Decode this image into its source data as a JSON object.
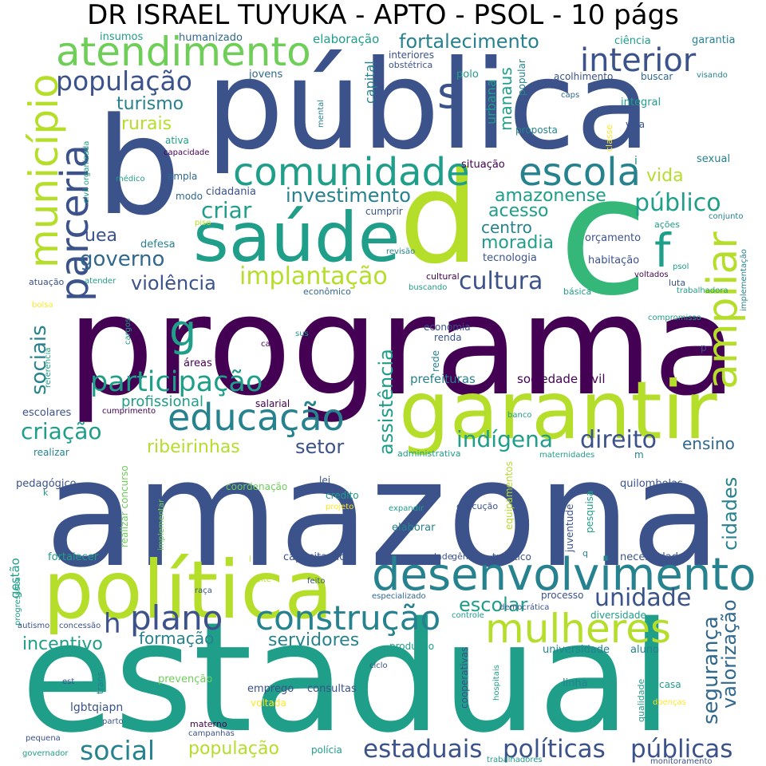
{
  "title": "DR ISRAEL TUYUKA - APTO - PSOL - 10 págs",
  "colors": {
    "dark_purple": "#440154",
    "indigo": "#3b528b",
    "blue": "#31688e",
    "teal_blue": "#26828e",
    "teal": "#1f9e89",
    "green": "#35b779",
    "light_green": "#6ece58",
    "lime": "#b5de2b",
    "yellow": "#fde725"
  },
  "words": [
    {
      "text": "programa",
      "color": "dark_purple"
    },
    {
      "text": "amazona",
      "color": "indigo"
    },
    {
      "text": "estadual",
      "color": "teal"
    },
    {
      "text": "pública",
      "color": "indigo"
    },
    {
      "text": "b",
      "color": "indigo"
    },
    {
      "text": "c",
      "color": "green"
    },
    {
      "text": "d",
      "color": "lime"
    },
    {
      "text": "garantir",
      "color": "lime"
    },
    {
      "text": "política",
      "color": "lime"
    },
    {
      "text": "saúde",
      "color": "teal"
    },
    {
      "text": "desenvolvimento",
      "color": "teal_blue"
    },
    {
      "text": "município",
      "color": "lime"
    },
    {
      "text": "atendimento",
      "color": "light_green"
    },
    {
      "text": "comunidade",
      "color": "teal"
    },
    {
      "text": "escola",
      "color": "teal_blue"
    },
    {
      "text": "parceria",
      "color": "indigo"
    },
    {
      "text": "ampliar",
      "color": "lime"
    },
    {
      "text": "mulheres",
      "color": "lime"
    },
    {
      "text": "educação",
      "color": "teal_blue"
    },
    {
      "text": "construção",
      "color": "teal_blue"
    },
    {
      "text": "plano",
      "color": "indigo"
    },
    {
      "text": "interior",
      "color": "indigo"
    },
    {
      "text": "participação",
      "color": "teal"
    },
    {
      "text": "população",
      "color": "indigo"
    },
    {
      "text": "estaduais",
      "color": "indigo"
    },
    {
      "text": "políticas",
      "color": "indigo"
    },
    {
      "text": "públicas",
      "color": "indigo"
    },
    {
      "text": "social",
      "color": "teal_blue"
    },
    {
      "text": "s",
      "color": "indigo"
    },
    {
      "text": "f",
      "color": "teal"
    },
    {
      "text": "g",
      "color": "teal"
    },
    {
      "text": "h",
      "color": "indigo"
    },
    {
      "text": "unidade",
      "color": "indigo"
    },
    {
      "text": "cultura",
      "color": "indigo"
    },
    {
      "text": "implantação",
      "color": "lime"
    },
    {
      "text": "público",
      "color": "teal"
    },
    {
      "text": "governo",
      "color": "blue"
    },
    {
      "text": "criar",
      "color": "teal"
    },
    {
      "text": "direito",
      "color": "indigo"
    },
    {
      "text": "indígena",
      "color": "teal"
    },
    {
      "text": "criação",
      "color": "teal"
    },
    {
      "text": "sociais",
      "color": "teal_blue"
    },
    {
      "text": "assistência",
      "color": "teal"
    },
    {
      "text": "segurança",
      "color": "blue"
    },
    {
      "text": "valorização",
      "color": "blue"
    },
    {
      "text": "cidades",
      "color": "teal_blue"
    },
    {
      "text": "escolar",
      "color": "teal"
    },
    {
      "text": "violência",
      "color": "indigo"
    },
    {
      "text": "investimento",
      "color": "teal_blue"
    },
    {
      "text": "amazonense",
      "color": "teal"
    },
    {
      "text": "acesso",
      "color": "teal"
    },
    {
      "text": "moradia",
      "color": "teal"
    },
    {
      "text": "centro",
      "color": "teal_blue"
    },
    {
      "text": "turismo",
      "color": "teal_blue"
    },
    {
      "text": "rurais",
      "color": "lime"
    },
    {
      "text": "fortalecimento",
      "color": "teal_blue"
    },
    {
      "text": "vida",
      "color": "lime"
    },
    {
      "text": "setor",
      "color": "indigo"
    },
    {
      "text": "ribeirinhas",
      "color": "lime"
    },
    {
      "text": "servidores",
      "color": "teal_blue"
    },
    {
      "text": "formação",
      "color": "teal_blue"
    },
    {
      "text": "incentivo",
      "color": "teal"
    },
    {
      "text": "população",
      "color": "lime"
    },
    {
      "text": "profissional",
      "color": "teal"
    },
    {
      "text": "uea",
      "color": "indigo"
    },
    {
      "text": "ensino",
      "color": "blue"
    },
    {
      "text": "manaus",
      "color": "teal"
    },
    {
      "text": "urbana",
      "color": "teal"
    },
    {
      "text": "capital",
      "color": "teal_blue"
    },
    {
      "text": "elaboração",
      "color": "teal"
    },
    {
      "text": "insumos",
      "color": "teal"
    },
    {
      "text": "humanizado",
      "color": "blue"
    },
    {
      "text": "ciência",
      "color": "teal"
    },
    {
      "text": "garantia",
      "color": "teal_blue"
    },
    {
      "text": "interiores",
      "color": "indigo"
    },
    {
      "text": "obstétrica",
      "color": "indigo"
    },
    {
      "text": "popular",
      "color": "teal_blue"
    },
    {
      "text": "jovens",
      "color": "blue"
    },
    {
      "text": "polo",
      "color": "teal"
    },
    {
      "text": "acolhimento",
      "color": "indigo"
    },
    {
      "text": "buscar",
      "color": "blue"
    },
    {
      "text": "visando",
      "color": "teal_blue"
    },
    {
      "text": "integral",
      "color": "teal"
    },
    {
      "text": "caps",
      "color": "blue"
    },
    {
      "text": "mental",
      "color": "teal_blue"
    },
    {
      "text": "proposta",
      "color": "teal_blue"
    },
    {
      "text": "classe",
      "color": "yellow"
    },
    {
      "text": "visa",
      "color": "indigo"
    },
    {
      "text": "ativa",
      "color": "teal"
    },
    {
      "text": "capacidade",
      "color": "dark_purple"
    },
    {
      "text": "sexual",
      "color": "teal_blue"
    },
    {
      "text": "i",
      "color": "teal_blue"
    },
    {
      "text": "civil organizada",
      "color": "teal"
    },
    {
      "text": "médico",
      "color": "teal"
    },
    {
      "text": "ampla",
      "color": "blue"
    },
    {
      "text": "situação",
      "color": "dark_purple"
    },
    {
      "text": "modo",
      "color": "blue"
    },
    {
      "text": "cidadania",
      "color": "indigo"
    },
    {
      "text": "cumprir",
      "color": "indigo"
    },
    {
      "text": "piso",
      "color": "lime"
    },
    {
      "text": "defesa",
      "color": "teal_blue"
    },
    {
      "text": "orçamento",
      "color": "indigo"
    },
    {
      "text": "ações",
      "color": "teal"
    },
    {
      "text": "conjunto",
      "color": "teal_blue"
    },
    {
      "text": "implementação",
      "color": "teal_blue"
    },
    {
      "text": "tecnologia",
      "color": "indigo"
    },
    {
      "text": "revisão",
      "color": "teal_blue"
    },
    {
      "text": "habitação",
      "color": "indigo"
    },
    {
      "text": "psol",
      "color": "teal"
    },
    {
      "text": "atuação",
      "color": "indigo"
    },
    {
      "text": "atender",
      "color": "teal"
    },
    {
      "text": "cultural",
      "color": "dark_purple"
    },
    {
      "text": "buscando",
      "color": "teal"
    },
    {
      "text": "voltados",
      "color": "dark_purple"
    },
    {
      "text": "luta",
      "color": "indigo"
    },
    {
      "text": "trabalhadora",
      "color": "teal"
    },
    {
      "text": "econômico",
      "color": "blue"
    },
    {
      "text": "básica",
      "color": "teal"
    },
    {
      "text": "bolsa",
      "color": "yellow"
    },
    {
      "text": "compromisso",
      "color": "teal"
    },
    {
      "text": "referência",
      "color": "teal"
    },
    {
      "text": "cargos",
      "color": "teal"
    },
    {
      "text": "economia",
      "color": "indigo"
    },
    {
      "text": "renda",
      "color": "indigo"
    },
    {
      "text": "ca",
      "color": "dark_purple"
    },
    {
      "text": "sus",
      "color": "teal"
    },
    {
      "text": "p",
      "color": "indigo"
    },
    {
      "text": "rede",
      "color": "teal_blue"
    },
    {
      "text": "áreas",
      "color": "dark_purple"
    },
    {
      "text": "prefeituras",
      "color": "teal_blue"
    },
    {
      "text": "sociedade civil",
      "color": "dark_purple"
    },
    {
      "text": "salarial",
      "color": "dark_purple"
    },
    {
      "text": "escolares",
      "color": "indigo"
    },
    {
      "text": "cumprimento",
      "color": "dark_purple"
    },
    {
      "text": "banco",
      "color": "teal"
    },
    {
      "text": "realizar",
      "color": "teal_blue"
    },
    {
      "text": "administrativa",
      "color": "teal"
    },
    {
      "text": "maternidades",
      "color": "teal"
    },
    {
      "text": "m",
      "color": "teal_blue"
    },
    {
      "text": "pedagógico",
      "color": "indigo"
    },
    {
      "text": "realizar concurso",
      "color": "light_green"
    },
    {
      "text": "coordenação",
      "color": "light_green"
    },
    {
      "text": "lei",
      "color": "indigo"
    },
    {
      "text": "credito",
      "color": "teal"
    },
    {
      "text": "projeto",
      "color": "yellow"
    },
    {
      "text": "expandir",
      "color": "teal"
    },
    {
      "text": "execução",
      "color": "indigo"
    },
    {
      "text": "equipamentos",
      "color": "lime"
    },
    {
      "text": "juventude",
      "color": "indigo"
    },
    {
      "text": "pesquisa",
      "color": "teal"
    },
    {
      "text": "quilombolas",
      "color": "indigo"
    },
    {
      "text": "k",
      "color": "teal"
    },
    {
      "text": "implementar",
      "color": "light_green"
    },
    {
      "text": "elaborar",
      "color": "teal_blue"
    },
    {
      "text": "dade",
      "color": "indigo"
    },
    {
      "text": "gênero",
      "color": "indigo"
    },
    {
      "text": "turístico",
      "color": "indigo"
    },
    {
      "text": "q",
      "color": "teal_blue"
    },
    {
      "text": "necessidades",
      "color": "indigo"
    },
    {
      "text": "gestão",
      "color": "teal"
    },
    {
      "text": "fortalecer",
      "color": "teal"
    },
    {
      "text": "capacitação",
      "color": "indigo"
    },
    {
      "text": "l",
      "color": "lime"
    },
    {
      "text": "progressões",
      "color": "teal"
    },
    {
      "text": "raça",
      "color": "indigo"
    },
    {
      "text": "leite",
      "color": "lime"
    },
    {
      "text": "feito",
      "color": "indigo"
    },
    {
      "text": "especializado",
      "color": "blue"
    },
    {
      "text": "democrática",
      "color": "indigo"
    },
    {
      "text": "processo",
      "color": "indigo"
    },
    {
      "text": "diversidade",
      "color": "teal"
    },
    {
      "text": "autismo",
      "color": "indigo"
    },
    {
      "text": "concessão",
      "color": "indigo"
    },
    {
      "text": "controle",
      "color": "teal"
    },
    {
      "text": "produção",
      "color": "teal"
    },
    {
      "text": "universidade",
      "color": "teal_blue"
    },
    {
      "text": "aluno",
      "color": "teal_blue"
    },
    {
      "text": "cooperativas",
      "color": "indigo"
    },
    {
      "text": "hospitais",
      "color": "teal"
    },
    {
      "text": "ciclo",
      "color": "indigo"
    },
    {
      "text": "est",
      "color": "indigo"
    },
    {
      "text": "trans",
      "color": "teal_blue"
    },
    {
      "text": "prevenção",
      "color": "light_green"
    },
    {
      "text": "emprego",
      "color": "indigo"
    },
    {
      "text": "consultas",
      "color": "indigo"
    },
    {
      "text": "linha",
      "color": "teal_blue"
    },
    {
      "text": "qualidade",
      "color": "teal"
    },
    {
      "text": "casa",
      "color": "teal"
    },
    {
      "text": "lgbtqiapn",
      "color": "indigo"
    },
    {
      "text": "voltada",
      "color": "yellow"
    },
    {
      "text": "doenças",
      "color": "yellow"
    },
    {
      "text": "pequena",
      "color": "indigo"
    },
    {
      "text": "parto",
      "color": "indigo"
    },
    {
      "text": "materno",
      "color": "dark_purple"
    },
    {
      "text": "campanhas",
      "color": "indigo"
    },
    {
      "text": "governador",
      "color": "teal"
    },
    {
      "text": "polícia",
      "color": "teal"
    },
    {
      "text": "trabalhadores",
      "color": "teal"
    },
    {
      "text": "monitoramento",
      "color": "indigo"
    }
  ]
}
